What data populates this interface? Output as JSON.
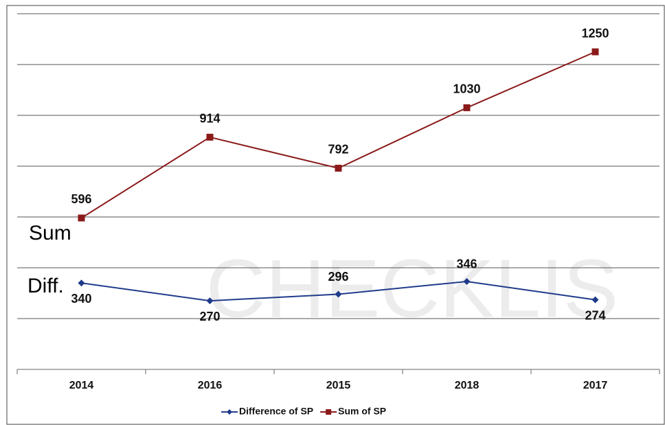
{
  "chart_data": {
    "type": "line",
    "categories": [
      "2014",
      "2016",
      "2015",
      "2018",
      "2017"
    ],
    "series": [
      {
        "name": "Difference of SP",
        "color": "#1f3a8a",
        "marker": "diamond",
        "values": [
          340,
          270,
          296,
          346,
          274
        ]
      },
      {
        "name": "Sum of SP",
        "color": "#8b1a1a",
        "marker": "square",
        "values": [
          596,
          914,
          792,
          1030,
          1250
        ]
      }
    ],
    "ylim": [
      0,
      1400
    ],
    "yticks": [
      0,
      200,
      400,
      600,
      800,
      1000,
      1200,
      1400
    ],
    "grid": true,
    "annotations": [
      "Sum",
      "Diff."
    ],
    "watermark": "CHECKLIS",
    "legend": "bottom"
  }
}
